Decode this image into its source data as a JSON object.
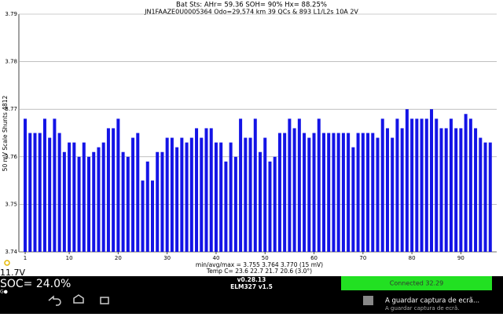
{
  "chart_data": {
    "type": "bar",
    "title": "Bat Sts:  AHr= 59.36  SOH= 90%   Hx= 88.25%",
    "subtitle": "JN1FAAZE0U0005364 Odo=29,574 km  39 QCs  &  893 L1/L2s 10A 2V",
    "y_label": "50 mV Scale  Shunts 4812",
    "annotations": [
      "min/avg/max = 3.755 3.764 3.770  (15 mV)",
      "Temp C= 23.6  22.7  21.7  20.6  (3.0°)"
    ],
    "x": [
      1,
      2,
      3,
      4,
      5,
      6,
      7,
      8,
      9,
      10,
      11,
      12,
      13,
      14,
      15,
      16,
      17,
      18,
      19,
      20,
      21,
      22,
      23,
      24,
      25,
      26,
      27,
      28,
      29,
      30,
      31,
      32,
      33,
      34,
      35,
      36,
      37,
      38,
      39,
      40,
      41,
      42,
      43,
      44,
      45,
      46,
      47,
      48,
      49,
      50,
      51,
      52,
      53,
      54,
      55,
      56,
      57,
      58,
      59,
      60,
      61,
      62,
      63,
      64,
      65,
      66,
      67,
      68,
      69,
      70,
      71,
      72,
      73,
      74,
      75,
      76,
      77,
      78,
      79,
      80,
      81,
      82,
      83,
      84,
      85,
      86,
      87,
      88,
      89,
      90,
      91,
      92,
      93,
      94,
      95,
      96
    ],
    "values": [
      3.768,
      3.765,
      3.765,
      3.765,
      3.768,
      3.764,
      3.768,
      3.765,
      3.761,
      3.763,
      3.763,
      3.76,
      3.763,
      3.76,
      3.761,
      3.762,
      3.763,
      3.766,
      3.766,
      3.768,
      3.761,
      3.76,
      3.764,
      3.765,
      3.755,
      3.759,
      3.755,
      3.761,
      3.761,
      3.764,
      3.764,
      3.762,
      3.764,
      3.763,
      3.764,
      3.766,
      3.764,
      3.766,
      3.766,
      3.763,
      3.763,
      3.759,
      3.763,
      3.76,
      3.768,
      3.764,
      3.764,
      3.768,
      3.761,
      3.764,
      3.759,
      3.76,
      3.765,
      3.765,
      3.768,
      3.766,
      3.768,
      3.765,
      3.764,
      3.765,
      3.768,
      3.765,
      3.765,
      3.765,
      3.765,
      3.765,
      3.765,
      3.762,
      3.765,
      3.765,
      3.765,
      3.765,
      3.764,
      3.768,
      3.766,
      3.764,
      3.768,
      3.766,
      3.77,
      3.768,
      3.768,
      3.768,
      3.768,
      3.77,
      3.768,
      3.766,
      3.766,
      3.768,
      3.766,
      3.766,
      3.769,
      3.768,
      3.766,
      3.764,
      3.763,
      3.763
    ],
    "color": "#1414e6",
    "xlim": [
      0,
      97
    ],
    "xticks": [
      1,
      10,
      20,
      30,
      40,
      50,
      60,
      70,
      80,
      90
    ],
    "ylim": [
      3.74,
      3.79
    ],
    "yticks": [
      3.74,
      3.75,
      3.76,
      3.77,
      3.78,
      3.79
    ],
    "grid": true
  },
  "status": {
    "voltage": "11.7V",
    "soc": "SOC= 24.0%",
    "version": "v0.28.13",
    "adapter": "ELM327 v1.5",
    "button": "Connected 32.29",
    "icons": "G●"
  },
  "notification": {
    "title": "A guardar captura de ecrã...",
    "text": "A guardar captura de ecrã."
  }
}
